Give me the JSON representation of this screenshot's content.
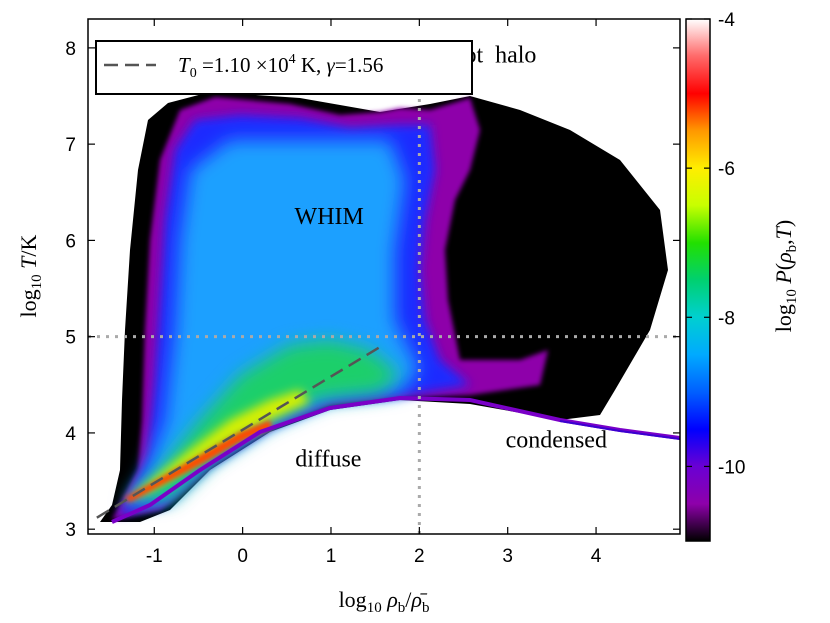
{
  "chart_data": {
    "type": "heatmap",
    "title": "",
    "xlabel": "log10 ρb/ρ̄b",
    "ylabel": "log10 T/K",
    "xlim": [
      -1.75,
      4.95
    ],
    "ylim": [
      2.95,
      8.3
    ],
    "xticks": [
      -1,
      0,
      1,
      2,
      3,
      4
    ],
    "yticks": [
      3,
      4,
      5,
      6,
      7,
      8
    ],
    "colorbar": {
      "label": "log10 P(ρb,T)",
      "range": [
        -11,
        -4
      ],
      "ticks": [
        -4,
        -6,
        -8,
        -10
      ],
      "colors": [
        "#000000",
        "#8e00aa",
        "#6a00d4",
        "#0000ff",
        "#0060ff",
        "#00aaff",
        "#00d0d0",
        "#00d070",
        "#22e000",
        "#c8ff00",
        "#ffee00",
        "#ff9800",
        "#ff0000",
        "#ff6a6a",
        "#ffffff"
      ]
    },
    "guides": {
      "x": 2,
      "y": 5
    },
    "fit_line": {
      "legend": "T0 = 1.10 ×10^4 K,  γ = 1.56",
      "T0": "1.10×10^4 K",
      "gamma": 1.56,
      "x": [
        -1.65,
        1.55
      ],
      "y": [
        3.12,
        4.89
      ]
    },
    "regions": [
      {
        "name": "hot  halo",
        "x": 2.85,
        "y": 7.85
      },
      {
        "name": "WHIM",
        "x": 0.98,
        "y": 6.17
      },
      {
        "name": "diffuse",
        "x": 0.97,
        "y": 3.65
      },
      {
        "name": "condensed",
        "x": 3.55,
        "y": 3.85
      }
    ]
  }
}
